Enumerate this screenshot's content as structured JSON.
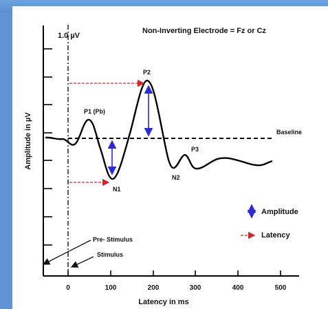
{
  "figure": {
    "title": "Non-Inverting Electrode = Fz or Cz",
    "scale_label": "1.0 µV",
    "y_axis_label": "Amplitude in µV",
    "x_axis_label": "Latency in ms",
    "baseline_label": "Baseline",
    "peaks": {
      "p1": "P1 (Pb)",
      "p2": "P2",
      "p3": "P3",
      "n1": "N1",
      "n2": "N2"
    },
    "legend": {
      "amplitude": "Amplitude",
      "latency": "Latency"
    },
    "annotations": {
      "pre_stimulus": "Pre- Stimulus",
      "stimulus": "Stimulus"
    },
    "x_ticks": [
      "0",
      "100",
      "200",
      "300",
      "400",
      "500"
    ],
    "colors": {
      "amplitude_arrow": "#2a2ad8",
      "latency_arrow": "#e02020",
      "waveform": "#000000",
      "background": "#5f95d6"
    }
  }
}
